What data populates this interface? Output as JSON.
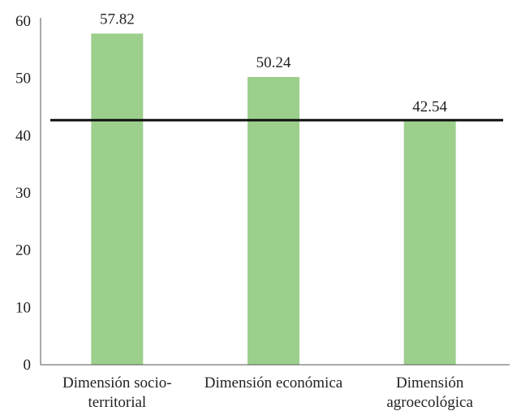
{
  "chart_data": {
    "type": "bar",
    "categories": [
      [
        "Dimensión socio-",
        "territorial"
      ],
      [
        "Dimensión económica"
      ],
      [
        "Dimensión",
        "agroecológica"
      ]
    ],
    "values": [
      57.82,
      50.24,
      42.54
    ],
    "value_labels": [
      "57.82",
      "50.24",
      "42.54"
    ],
    "title": "",
    "xlabel": "",
    "ylabel": "",
    "ylim": [
      0,
      60
    ],
    "yticks": [
      0,
      10,
      20,
      30,
      40,
      50,
      60
    ],
    "reference_line": {
      "value": 42.7,
      "color": "#111111"
    },
    "bar_color": "#9ccf8c",
    "axis_color": "#555555",
    "grid": false,
    "legend": "none"
  }
}
